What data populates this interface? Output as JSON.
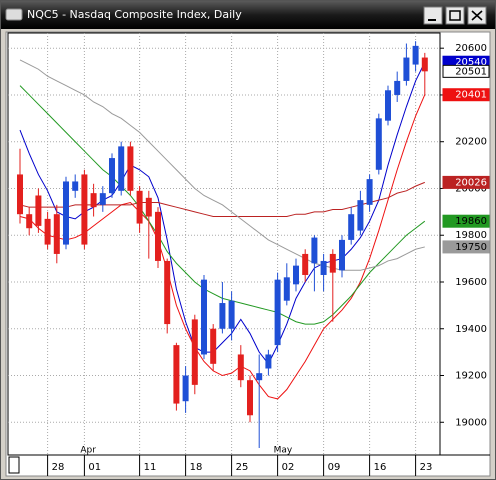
{
  "chart_data": {
    "type": "candlestick",
    "title": "NQC5 - Nasdaq Composite Index, Daily",
    "categories": [
      null,
      null,
      null,
      "28",
      null,
      null,
      null,
      "01",
      null,
      null,
      null,
      null,
      null,
      "11",
      null,
      null,
      null,
      null,
      "18",
      null,
      null,
      null,
      null,
      "25",
      null,
      null,
      null,
      null,
      "02",
      null,
      null,
      null,
      null,
      "09",
      null,
      null,
      null,
      null,
      "16",
      null,
      null,
      null,
      null,
      "23",
      null
    ],
    "month_labels": [
      null,
      null,
      null,
      null,
      null,
      null,
      null,
      "Apr",
      null,
      null,
      null,
      null,
      null,
      null,
      null,
      null,
      null,
      null,
      null,
      null,
      null,
      null,
      null,
      null,
      null,
      null,
      null,
      null,
      "May",
      null,
      null,
      null,
      null,
      null,
      null,
      null,
      null,
      null,
      null,
      null,
      null,
      null,
      null,
      null,
      null
    ],
    "open": [
      20060,
      19890,
      19970,
      19870,
      19890,
      19760,
      19990,
      20060,
      19980,
      19930,
      19980,
      19990,
      20180,
      19990,
      19960,
      19900,
      19690,
      19330,
      19090,
      19440,
      19290,
      19400,
      19400,
      19400,
      19290,
      19180,
      19180,
      19230,
      19330,
      19520,
      19590,
      19720,
      19680,
      19630,
      19720,
      19650,
      19780,
      19820,
      19930,
      20080,
      20290,
      20400,
      20460,
      20530,
      20560
    ],
    "high": [
      20170,
      19920,
      20000,
      19900,
      19930,
      20050,
      20060,
      20080,
      20020,
      20010,
      20150,
      20200,
      20200,
      20010,
      19990,
      19920,
      19700,
      19340,
      19240,
      19460,
      19630,
      19420,
      19600,
      19560,
      19330,
      19200,
      19290,
      19310,
      19640,
      19680,
      19700,
      19740,
      19800,
      19720,
      19740,
      19800,
      19920,
      19990,
      20060,
      20320,
      20440,
      20500,
      20620,
      20630,
      20580
    ],
    "low": [
      19850,
      19800,
      19810,
      19740,
      19680,
      19740,
      19960,
      19740,
      19880,
      19900,
      19960,
      19970,
      19970,
      19810,
      19700,
      19660,
      19380,
      19050,
      19040,
      19120,
      19270,
      19220,
      19380,
      19350,
      19150,
      19000,
      18890,
      19200,
      19300,
      19500,
      19560,
      19600,
      19560,
      19560,
      19430,
      19620,
      19760,
      19800,
      19900,
      20060,
      20270,
      20370,
      20440,
      20500,
      20400
    ],
    "close": [
      19890,
      19830,
      19840,
      19760,
      19720,
      20030,
      20030,
      19760,
      19920,
      19980,
      20130,
      20180,
      19990,
      19850,
      19880,
      19690,
      19420,
      19080,
      19200,
      19160,
      19610,
      19250,
      19510,
      19520,
      19180,
      19030,
      19210,
      19290,
      19610,
      19620,
      19670,
      19630,
      19790,
      19690,
      19640,
      19780,
      19890,
      19950,
      20040,
      20300,
      20420,
      20460,
      20560,
      20610,
      20501
    ],
    "up_color": "#1f4fd6",
    "down_color": "#e3201e",
    "lines": [
      {
        "color": "#0000cc",
        "label_text_color": "#ffffff",
        "values": [
          20250,
          20150,
          20060,
          19990,
          19900,
          19880,
          19870,
          19900,
          19920,
          19950,
          19970,
          20030,
          20100,
          20080,
          20050,
          19960,
          19780,
          19570,
          19430,
          19320,
          19300,
          19300,
          19340,
          19380,
          19440,
          19380,
          19300,
          19250,
          19330,
          19420,
          19530,
          19600,
          19660,
          19680,
          19690,
          19700,
          19740,
          19790,
          19860,
          19950,
          20100,
          20230,
          20350,
          20460,
          20540
        ]
      },
      {
        "color": "#ee1111",
        "label_text_color": "#ffffff",
        "values": [
          19880,
          19870,
          19830,
          19800,
          19790,
          19780,
          19790,
          19810,
          19840,
          19870,
          19900,
          19930,
          19940,
          19900,
          19860,
          19780,
          19650,
          19500,
          19400,
          19320,
          19260,
          19220,
          19200,
          19210,
          19240,
          19220,
          19160,
          19110,
          19100,
          19140,
          19200,
          19260,
          19330,
          19400,
          19440,
          19480,
          19530,
          19600,
          19700,
          19820,
          19950,
          20080,
          20200,
          20310,
          20401
        ]
      },
      {
        "color": "#bb2222",
        "label_text_color": "#ffffff",
        "values": [
          19930,
          19920,
          19920,
          19920,
          19920,
          19920,
          19930,
          19930,
          19930,
          19930,
          19930,
          19930,
          19930,
          19940,
          19940,
          19940,
          19930,
          19920,
          19910,
          19900,
          19890,
          19880,
          19880,
          19880,
          19880,
          19880,
          19880,
          19880,
          19880,
          19880,
          19890,
          19890,
          19900,
          19900,
          19910,
          19910,
          19920,
          19930,
          19940,
          19950,
          19960,
          19980,
          19990,
          20010,
          20026
        ]
      },
      {
        "color": "#229922",
        "label_text_color": "#000000",
        "values": [
          20440,
          20400,
          20360,
          20320,
          20280,
          20240,
          20200,
          20160,
          20120,
          20080,
          20050,
          20010,
          19970,
          19920,
          19860,
          19800,
          19730,
          19680,
          19640,
          19600,
          19570,
          19550,
          19530,
          19520,
          19510,
          19500,
          19490,
          19480,
          19470,
          19450,
          19430,
          19420,
          19420,
          19430,
          19460,
          19500,
          19540,
          19590,
          19640,
          19680,
          19720,
          19760,
          19800,
          19830,
          19860
        ]
      },
      {
        "color": "#9a9a9a",
        "label_text_color": "#000000",
        "values": [
          20550,
          20530,
          20510,
          20480,
          20460,
          20440,
          20420,
          20400,
          20370,
          20350,
          20320,
          20300,
          20270,
          20240,
          20200,
          20160,
          20120,
          20080,
          20040,
          20000,
          19970,
          19950,
          19930,
          19900,
          19870,
          19840,
          19810,
          19780,
          19760,
          19740,
          19720,
          19700,
          19680,
          19670,
          19660,
          19650,
          19650,
          19650,
          19660,
          19670,
          19690,
          19700,
          19720,
          19740,
          19750
        ]
      }
    ],
    "ylim": [
      18860,
      20665
    ],
    "yticks": [
      19000,
      19200,
      19400,
      19600,
      19800,
      20000,
      20200,
      20400,
      20600
    ],
    "grid": true
  }
}
